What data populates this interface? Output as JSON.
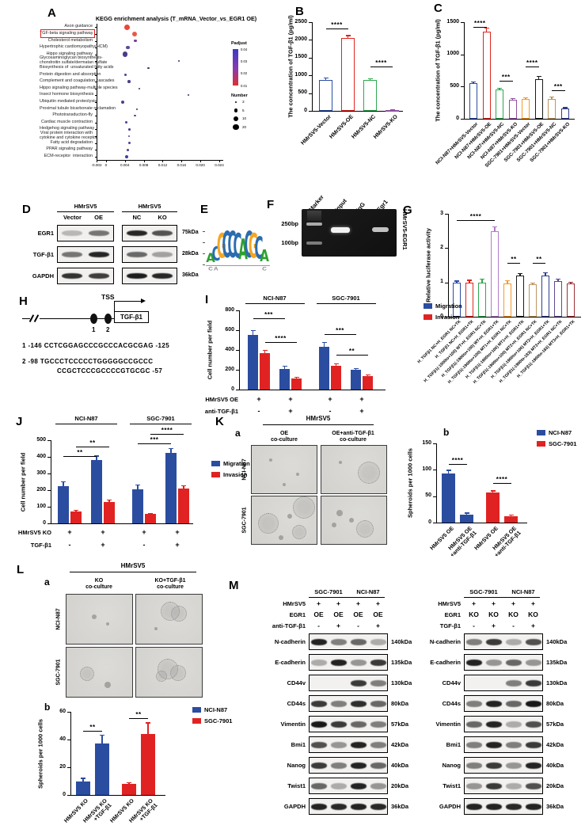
{
  "letters": {
    "A": "A",
    "B": "B",
    "C": "C",
    "D": "D",
    "E": "E",
    "F": "F",
    "G": "G",
    "H": "H",
    "I": "I",
    "J": "J",
    "K": "K",
    "L": "L",
    "M": "M"
  },
  "chart_data": {
    "A": {
      "type": "scatter",
      "title": "KEGG enrichment analysis (T_mRNA_Vector_vs_EGR1 OE)",
      "categories": [
        "Axon guidance",
        "TGF-beta signaling pathway",
        "Cholesterol metabolism",
        "Hypertrophic cardiomyopathy(HCM)",
        "Hippo signaling pathway",
        "Glycosaminoglycan biosynthesis-\nchondroitin sulfate/dermatan sulfate",
        "Biosynthesis of  unsaturated fatty acids",
        "Protein digestion and absorption",
        "Complement and coagulation cascades",
        "Hippo signaling pathway-multiple species",
        "Insect hormone biosynthesis",
        "Ubiquitin mediated proteolysis",
        "Proximal tubule bicarbonate reclamation",
        "Phototransduction-fly",
        "Cardiac muscle contraction",
        "Hedgehog signaling pathway",
        "Viral protein interaction with\ncytokine and cytokine receptor",
        "Fatty acid degradation",
        "PPAR signaling pathway",
        "ECM-receptor  interaction"
      ],
      "x": [
        0.0045,
        0.006,
        0.0062,
        0.0046,
        0.004,
        0.0155,
        0.009,
        0.0042,
        0.0049,
        0.007,
        0.0175,
        0.0036,
        0.0066,
        0.0061,
        0.0043,
        0.005,
        0.0049,
        0.005,
        0.0046,
        0.0043
      ],
      "size": [
        7,
        6,
        3.5,
        4.5,
        6.5,
        2,
        2.5,
        3,
        3.5,
        2,
        2,
        4,
        2,
        2.5,
        3.5,
        2.5,
        2.5,
        3,
        3,
        4
      ],
      "color": [
        "#e8483b",
        "#e85948",
        "#7a3b8f",
        "#5b4a9b",
        "#4a3d85",
        "#3a3160",
        "#3a3160",
        "#4a4090",
        "#4a4090",
        "#3a3160",
        "#3a3160",
        "#4a4090",
        "#3a3160",
        "#4a4090",
        "#4a4090",
        "#4a4090",
        "#4a4090",
        "#4a4090",
        "#4a4090",
        "#3f3e9e"
      ],
      "xlim": [
        -0.002,
        0.0245
      ],
      "xticks": [
        -0.002,
        0,
        0.004,
        0.008,
        0.012,
        0.016,
        0.02,
        0.024
      ],
      "xtick_labels": [
        "-0.002",
        "0",
        "0.004",
        "0.008",
        "0.012",
        "0.016",
        "0.020",
        "0.024"
      ],
      "highlight": 1,
      "highlight_color": "#dd2222",
      "legend": {
        "padjust_label": "Padjust",
        "padjust_ticks": [
          "0.04",
          "0.03",
          "0.02",
          "0.01"
        ],
        "number_label": "Number",
        "number_items": [
          "3",
          "5",
          "10",
          "20"
        ]
      }
    },
    "B": {
      "type": "bar",
      "open": true,
      "ylabel": "The concentration of  TGF-β1 (pg/ml)",
      "categories": [
        "HMrSV5-Vector",
        "HMrSV5-OE",
        "HMrSV5-NC",
        "HMrSV5-KO"
      ],
      "values": [
        880,
        2050,
        860,
        25
      ],
      "errors": [
        45,
        70,
        40,
        12
      ],
      "colors": [
        "#2b4da0",
        "#e0251f",
        "#2fa84f",
        "#8f4fa0"
      ],
      "yticks": [
        0,
        500,
        1000,
        1500,
        2000,
        2500
      ],
      "ymax": 2500,
      "sig": [
        {
          "a": 0,
          "b": 1,
          "label": "****",
          "y": 8
        },
        {
          "a": 2,
          "b": 3,
          "label": "****",
          "y": 56
        }
      ]
    },
    "C": {
      "type": "bar",
      "open": true,
      "ylabel": "The concentration of  TGF-β1 (pg/ml)",
      "categories": [
        "NCI-N87+HMrSV5-Vector",
        "NCI-N87+HMrSV5-OE",
        "NCI-N87+HMrSV5-NC",
        "NCI-N87+HMrSV5-KO",
        "SGC-7901+HMrSV5-Vector",
        "SGC-7901+HMrSV5-OE",
        "SGC-7901+HMrSV5-NC",
        "SGC-7901+HMrSV5-KO"
      ],
      "values": [
        550,
        1350,
        450,
        290,
        310,
        620,
        310,
        160
      ],
      "errors": [
        25,
        60,
        25,
        20,
        18,
        35,
        25,
        12
      ],
      "colors": [
        "#2b4da0",
        "#e0251f",
        "#2fa84f",
        "#8f4fa0",
        "#f59b28",
        "#1a1a1a",
        "#bd9663",
        "#2b3f87"
      ],
      "yticks": [
        0,
        500,
        1000,
        1500
      ],
      "ymax": 1500,
      "sig": [
        {
          "a": 0,
          "b": 1,
          "label": "****",
          "y": 6
        },
        {
          "a": 2,
          "b": 3,
          "label": "***",
          "y": 74
        },
        {
          "a": 4,
          "b": 5,
          "label": "****",
          "y": 56
        },
        {
          "a": 6,
          "b": 7,
          "label": "***",
          "y": 86
        }
      ]
    },
    "G": {
      "type": "bar",
      "open": true,
      "ylabel": "Relative luciferase activity",
      "categories": [
        "H_TGFβ1 NC+H_EGR1 NC+TK",
        "H_TGFβ1 NC+H_EGR1+TK",
        "H_TGFβ1(-1900to+100) WT+H_EGR1 NC+TK",
        "H_TGFβ1(-1900to+100) WT+H_EGR1+TK",
        "H_TGFβ1(-1900to+100) MT1+H_EGR1 NC+TK",
        "H_TGFβ1(-1900to+100) MT1+H_EGR1+TK",
        "H_TGFβ1(-1900to+100) MT2+H_EGR1 NC+TK",
        "H_TGFβ1(-1900to+100) MT2+H_EGR1+TK",
        "H_TGFβ1(-1900to-183) MT3+H_EGR1 NC+TK",
        "H_TGFβ1(-1900to-183) MT3+H_EGR1+TK"
      ],
      "values": [
        1.0,
        1.0,
        1.0,
        2.5,
        0.97,
        1.2,
        0.95,
        1.2,
        1.03,
        0.96
      ],
      "errors": [
        0.04,
        0.06,
        0.1,
        0.12,
        0.08,
        0.05,
        0.03,
        0.09,
        0.07,
        0.05
      ],
      "colors": [
        "#2b4da0",
        "#e0251f",
        "#2fa84f",
        "#b07cc6",
        "#f59b28",
        "#1a1a1a",
        "#bd9663",
        "#2b3f87",
        "#5d4a8f",
        "#9e3039"
      ],
      "yticks": [
        0,
        1,
        2,
        3
      ],
      "ymax": 3,
      "sig": [
        {
          "a": 0,
          "b": 3,
          "label": "****",
          "y": 8
        },
        {
          "a": 4,
          "b": 5,
          "label": "**",
          "y": 62
        },
        {
          "a": 6,
          "b": 7,
          "label": "**",
          "y": 62
        }
      ]
    },
    "I": {
      "type": "bar",
      "open": false,
      "ylabel": "Cell number per field",
      "values": [
        550,
        370,
        210,
        115,
        435,
        240,
        200,
        140
      ],
      "errors": [
        45,
        25,
        25,
        12,
        40,
        20,
        15,
        10
      ],
      "colors": [
        "#2b4da0",
        "#e02322",
        "#2b4da0",
        "#e02322",
        "#2b4da0",
        "#e02322",
        "#2b4da0",
        "#e02322"
      ],
      "yticks": [
        0,
        200,
        400,
        600,
        800
      ],
      "ymax": 800,
      "groups": [
        {
          "label": "NCI-N87",
          "a": 0,
          "b": 3
        },
        {
          "label": "SGC-7901",
          "a": 4,
          "b": 7
        }
      ],
      "legend": [
        {
          "label": "Migration",
          "color": "#2b4da0"
        },
        {
          "label": "Invasion",
          "color": "#e02322"
        }
      ],
      "rows": [
        {
          "label": "HMrSV5 OE",
          "marks": [
            "+",
            "+",
            "+",
            "+"
          ]
        },
        {
          "label": "anti-TGF-β1",
          "marks": [
            "-",
            "+",
            "-",
            "+"
          ]
        }
      ],
      "sig": [
        {
          "a": 0,
          "b": 2,
          "label": "***",
          "y": 10
        },
        {
          "a": 1,
          "b": 3,
          "label": "****",
          "y": 40
        },
        {
          "a": 4,
          "b": 6,
          "label": "***",
          "y": 30
        },
        {
          "a": 5,
          "b": 7,
          "label": "**",
          "y": 56
        }
      ]
    },
    "J": {
      "type": "bar",
      "open": false,
      "ylabel": "Cell number per field",
      "values": [
        225,
        70,
        380,
        130,
        205,
        55,
        425,
        210
      ],
      "errors": [
        25,
        8,
        25,
        10,
        25,
        6,
        25,
        15
      ],
      "colors": [
        "#2b4da0",
        "#e02322",
        "#2b4da0",
        "#e02322",
        "#2b4da0",
        "#e02322",
        "#2b4da0",
        "#e02322"
      ],
      "yticks": [
        0,
        100,
        200,
        300,
        400,
        500
      ],
      "ymax": 500,
      "groups": [
        {
          "label": "NCI-N87",
          "a": 0,
          "b": 3
        },
        {
          "label": "SGC-7901",
          "a": 4,
          "b": 7
        }
      ],
      "legend": [
        {
          "label": "Migration",
          "color": "#2b4da0"
        },
        {
          "label": "Invasion",
          "color": "#e02322"
        }
      ],
      "rows": [
        {
          "label": "HMrSV5 KO",
          "marks": [
            "+",
            "+",
            "+",
            "+"
          ]
        },
        {
          "label": "TGF-β1",
          "marks": [
            "-",
            "+",
            "-",
            "+"
          ]
        }
      ],
      "sig": [
        {
          "a": 0,
          "b": 2,
          "label": "**",
          "y": 20
        },
        {
          "a": 1,
          "b": 3,
          "label": "**",
          "y": 8
        },
        {
          "a": 4,
          "b": 6,
          "label": "***",
          "y": 4
        },
        {
          "a": 5,
          "b": 7,
          "label": "****",
          "y": -8
        }
      ]
    },
    "Kb": {
      "type": "bar",
      "open": false,
      "ylabel": "Spheroids per 1000 cells",
      "categories": [
        "HMrSV5 OE",
        "HMrSV5 OE\n+anti-TGF-β1",
        "HMrSV5 OE",
        "HMrSV5 OE\n+anti-TGF-β1"
      ],
      "values": [
        93,
        15,
        57,
        12
      ],
      "errors": [
        6,
        3,
        3,
        2
      ],
      "colors": [
        "#2b4da0",
        "#2b4da0",
        "#e02322",
        "#e02322"
      ],
      "yticks": [
        0,
        50,
        100,
        150
      ],
      "ymax": 150,
      "legend": [
        {
          "label": "NCI-N87",
          "color": "#2b4da0"
        },
        {
          "label": "SGC-7901",
          "color": "#e02322"
        }
      ],
      "sig": [
        {
          "a": 0,
          "b": 1,
          "label": "****",
          "y": 26
        },
        {
          "a": 2,
          "b": 3,
          "label": "****",
          "y": 50
        }
      ]
    },
    "Lb": {
      "type": "bar",
      "open": false,
      "ylabel": "Spheroids per 1000 cells",
      "categories": [
        "HMrSV5 KO",
        "HMrSV5 KO\n+TGF-β1",
        "HMrSV5 KO",
        "HMrSV5 KO\n+TGF-β1"
      ],
      "values": [
        10,
        37,
        8,
        44
      ],
      "errors": [
        2,
        6,
        1,
        8
      ],
      "colors": [
        "#2b4da0",
        "#2b4da0",
        "#e02322",
        "#e02322"
      ],
      "yticks": [
        0,
        20,
        40,
        60
      ],
      "ymax": 60,
      "legend": [
        {
          "label": "NCI-N87",
          "color": "#2b4da0"
        },
        {
          "label": "SGC-7901",
          "color": "#e02322"
        }
      ],
      "sig": [
        {
          "a": 0,
          "b": 1,
          "label": "**",
          "y": 24
        },
        {
          "a": 2,
          "b": 3,
          "label": "**",
          "y": 8
        }
      ]
    }
  },
  "panelD": {
    "groups": [
      {
        "label": "HMrSV5",
        "lanes": [
          "Vector",
          "OE"
        ]
      },
      {
        "label": "HMrSV5",
        "lanes": [
          "NC",
          "KO"
        ]
      }
    ],
    "rows": [
      {
        "label": "EGR1",
        "size": "75kDa",
        "bands": [
          [
            0.25,
            0.55
          ],
          [
            0.9,
            0.7
          ]
        ]
      },
      {
        "label": "TGF-β1",
        "size": "28kDa",
        "bands": [
          [
            0.55,
            0.9
          ],
          [
            0.6,
            0.35
          ]
        ]
      },
      {
        "label": "GAPDH",
        "size": "36kDa",
        "bands": [
          [
            0.85,
            0.8
          ],
          [
            0.95,
            0.9
          ]
        ]
      }
    ]
  },
  "panelE": {
    "sequence": [
      "A",
      "C",
      "G",
      "C",
      "C",
      "C",
      "A",
      "C",
      "G",
      "C",
      "A"
    ],
    "heights": [
      0.35,
      0.55,
      0.95,
      1.0,
      1.0,
      0.95,
      0.8,
      1.0,
      0.95,
      0.85,
      0.45
    ],
    "minor": [
      {
        "i": 0,
        "c": "C"
      },
      {
        "i": 1,
        "c": "A"
      },
      {
        "i": 10,
        "c": "C"
      }
    ],
    "base_colors": {
      "A": "#2ca02c",
      "C": "#2b6cb0",
      "G": "#f5a623",
      "T": "#d62728"
    }
  },
  "panelF": {
    "lanes": [
      "Marker",
      "Input",
      "IgG",
      "Egr1"
    ],
    "marker_sizes": [
      "250bp",
      "100bp"
    ],
    "side_label": "HMrSV5-EGR1"
  },
  "panelH": {
    "tss": "TSS",
    "gene": "TGF-β1",
    "site1": "1",
    "site2": "2",
    "seq1": "1  -146 CCTCGGAGCCCGCCCACGCGAG -125",
    "seq2": "2  -98 TGCCCTCCCCCTGGGGGCCGCCC",
    "seq3": "CCGCTCCCGCCCCGTGCGC -57"
  },
  "panelK": {
    "sub_a": "a",
    "sub_b": "b",
    "header": "HMrSV5",
    "cols": [
      "OE\nco-culture",
      "OE+anti-TGF-β1\nco-culture"
    ],
    "rows": [
      "NCI-N87",
      "SGC-7901"
    ],
    "blobs": [
      [
        [
          0.3,
          0.3,
          2
        ],
        [
          0.7,
          0.6,
          2
        ],
        [
          0.5,
          0.8,
          2
        ]
      ],
      [
        [
          0.72,
          0.55,
          13
        ],
        [
          0.3,
          0.35,
          2
        ]
      ],
      [
        [
          0.25,
          0.55,
          12
        ],
        [
          0.78,
          0.22,
          13
        ],
        [
          0.72,
          0.72,
          8
        ],
        [
          0.45,
          0.85,
          3
        ],
        [
          0.58,
          0.42,
          3
        ]
      ],
      [
        [
          0.28,
          0.35,
          4
        ],
        [
          0.2,
          0.6,
          3
        ],
        [
          0.66,
          0.66,
          10
        ],
        [
          0.46,
          0.5,
          3
        ]
      ]
    ]
  },
  "panelL": {
    "sub_a": "a",
    "sub_b": "b",
    "header": "HMrSV5",
    "cols": [
      "KO\nco-culture",
      "KO+TGF-β1\nco-culture"
    ],
    "rows": [
      "NCI-N87",
      "SGC-7901"
    ],
    "blobs": [
      [
        [
          0.42,
          0.45,
          3
        ],
        [
          0.62,
          0.6,
          2
        ]
      ],
      [
        [
          0.5,
          0.33,
          11
        ],
        [
          0.63,
          0.37,
          9
        ],
        [
          0.3,
          0.68,
          2
        ]
      ],
      [
        [
          0.3,
          0.52,
          8
        ],
        [
          0.62,
          0.75,
          4
        ]
      ],
      [
        [
          0.47,
          0.42,
          12
        ],
        [
          0.62,
          0.5,
          9
        ],
        [
          0.38,
          0.56,
          6
        ]
      ]
    ]
  },
  "panelM": {
    "rows": [
      {
        "label": "N-cadherin",
        "size": "140kDa"
      },
      {
        "label": "E-cadherin",
        "size": "135kDa"
      },
      {
        "label": "CD44v",
        "size": "130kDa"
      },
      {
        "label": "CD44s",
        "size": "80kDa"
      },
      {
        "label": "Vimentin",
        "size": "57kDa"
      },
      {
        "label": "Bmi1",
        "size": "42kDa"
      },
      {
        "label": "Nanog",
        "size": "40kDa"
      },
      {
        "label": "Twist1",
        "size": "20kDa"
      },
      {
        "label": "GAPDH",
        "size": "36kDa"
      }
    ],
    "blocks": [
      {
        "groups": [
          "SGC-7901",
          "NCI-N87"
        ],
        "cond_rows": [
          {
            "label": "HMrSV5",
            "marks": [
              "+",
              "+",
              "+",
              "+"
            ]
          },
          {
            "label": "EGR1",
            "marks": [
              "OE",
              "OE",
              "OE",
              "OE"
            ]
          },
          {
            "label": "anti-TGF-β1",
            "marks": [
              "-",
              "+",
              "-",
              "+"
            ]
          }
        ],
        "bands": [
          [
            0.9,
            0.5,
            0.6,
            0.3
          ],
          [
            0.3,
            0.9,
            0.4,
            0.8
          ],
          [
            0.05,
            0.05,
            0.8,
            0.5
          ],
          [
            0.8,
            0.5,
            0.85,
            0.6
          ],
          [
            0.95,
            0.8,
            0.6,
            0.5
          ],
          [
            0.7,
            0.4,
            0.9,
            0.5
          ],
          [
            0.8,
            0.5,
            0.9,
            0.6
          ],
          [
            0.6,
            0.3,
            0.9,
            0.4
          ],
          [
            0.9,
            0.88,
            0.9,
            0.88
          ]
        ]
      },
      {
        "groups": [
          "SGC-7901",
          "NCI-N87"
        ],
        "cond_rows": [
          {
            "label": "HMrSV5",
            "marks": [
              "+",
              "+",
              "+",
              "+"
            ]
          },
          {
            "label": "EGR1",
            "marks": [
              "KO",
              "KO",
              "KO",
              "KO"
            ]
          },
          {
            "label": "TGF-β1",
            "marks": [
              "-",
              "+",
              "-",
              "+"
            ]
          }
        ],
        "bands": [
          [
            0.5,
            0.8,
            0.3,
            0.7
          ],
          [
            0.9,
            0.4,
            0.6,
            0.4
          ],
          [
            0.05,
            0.05,
            0.5,
            0.8
          ],
          [
            0.5,
            0.9,
            0.6,
            0.95
          ],
          [
            0.6,
            0.9,
            0.3,
            0.7
          ],
          [
            0.5,
            0.9,
            0.5,
            0.8
          ],
          [
            0.5,
            0.8,
            0.4,
            0.9
          ],
          [
            0.4,
            0.8,
            0.3,
            0.7
          ],
          [
            0.9,
            0.9,
            0.88,
            0.9
          ]
        ]
      }
    ]
  }
}
